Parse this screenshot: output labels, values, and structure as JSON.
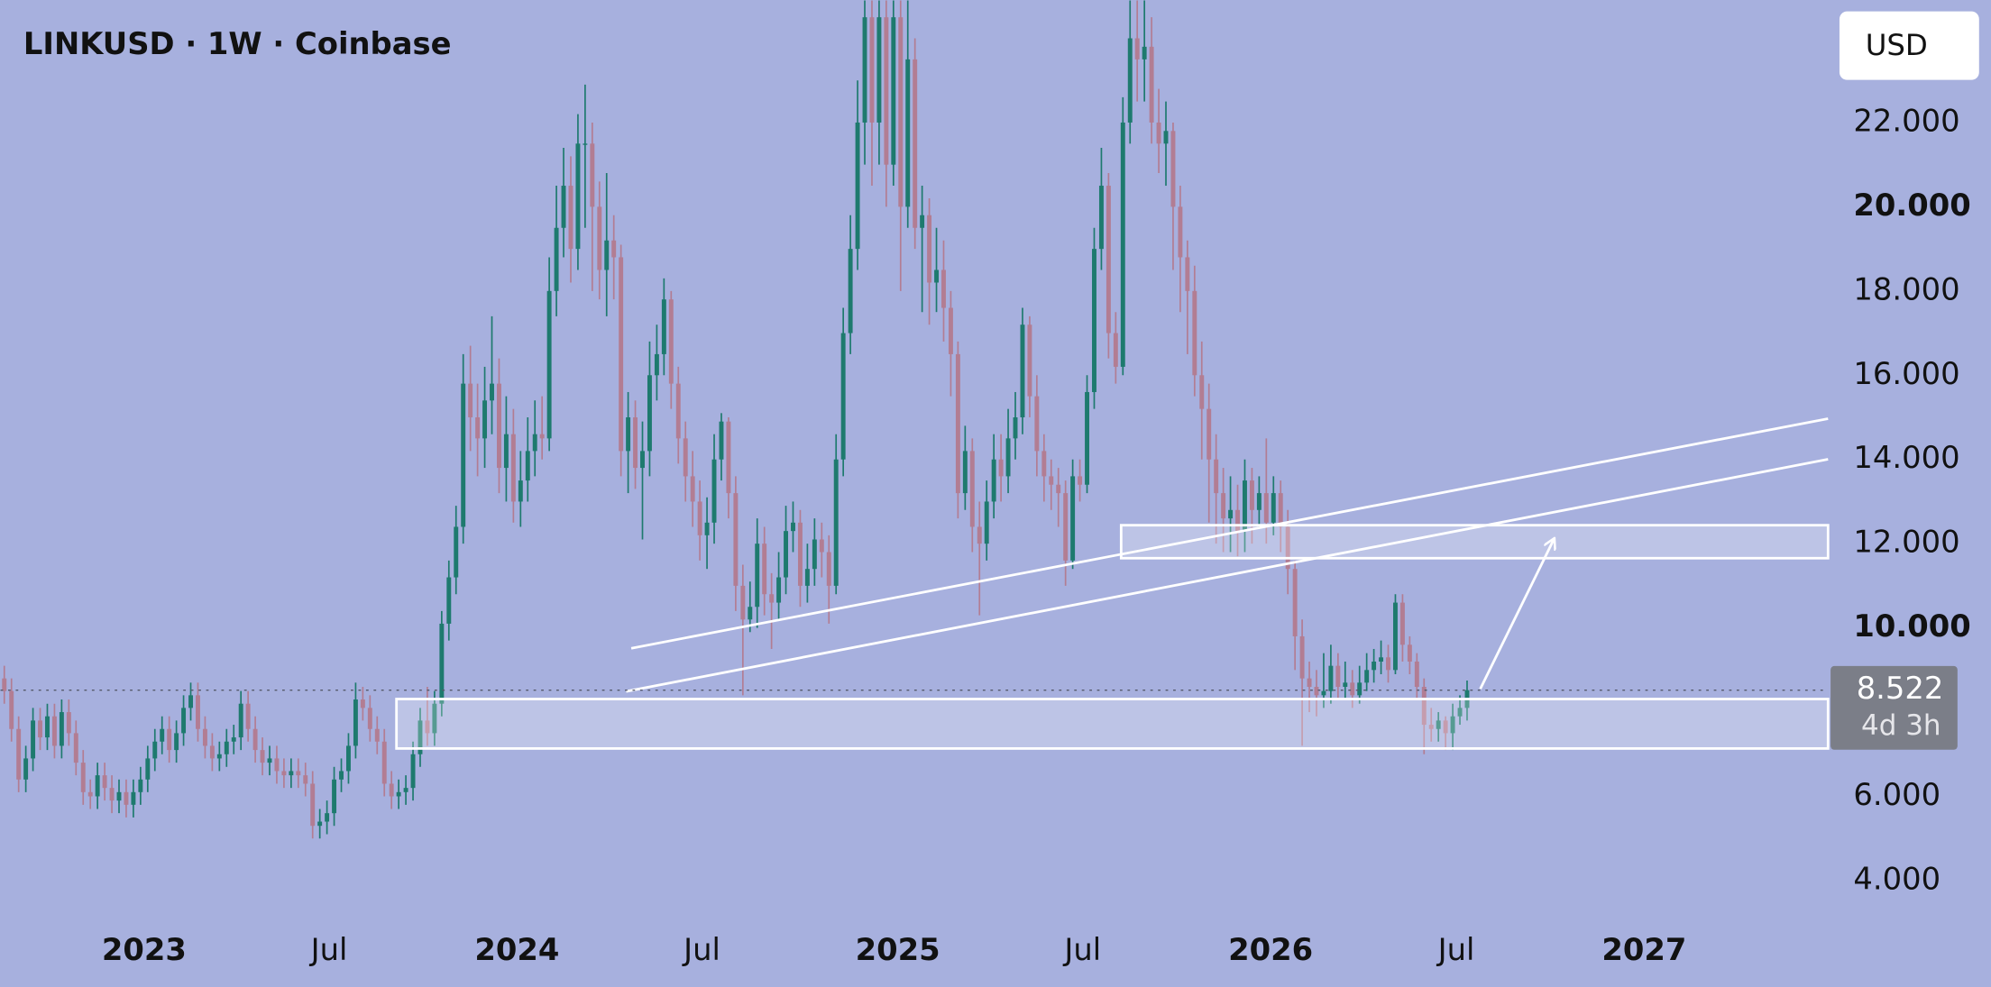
{
  "chart_data": {
    "type": "candlestick",
    "title": "LINKUSD · 1W · Coinbase",
    "currency": "USD",
    "countdown": "4d 3h",
    "up_color": "#1e7a6e",
    "down_color": "#b27d93",
    "ylim": [
      3.22,
      24.91
    ],
    "yticks": [
      {
        "value": 4,
        "label": "4.000"
      },
      {
        "value": 6,
        "label": "6.000"
      },
      {
        "value": 10,
        "label": "10.000"
      },
      {
        "value": 12,
        "label": "12.000"
      },
      {
        "value": 14,
        "label": "14.000"
      },
      {
        "value": 16,
        "label": "16.000"
      },
      {
        "value": 18,
        "label": "18.000"
      },
      {
        "value": 20,
        "label": "20.000"
      },
      {
        "value": 22,
        "label": "22.000"
      }
    ],
    "xlim": [
      -0.53,
      254.34
    ],
    "xticks": [
      {
        "value": 19.5,
        "label": "2023"
      },
      {
        "value": 45.3,
        "label": "Jul"
      },
      {
        "value": 71.5,
        "label": "2024"
      },
      {
        "value": 97.3,
        "label": "Jul"
      },
      {
        "value": 124.6,
        "label": "2025"
      },
      {
        "value": 150.4,
        "label": "Jul"
      },
      {
        "value": 176.6,
        "label": "2026"
      },
      {
        "value": 202.5,
        "label": "Jul"
      },
      {
        "value": 228.7,
        "label": "2027"
      }
    ],
    "open": [
      8.8,
      8.5,
      7.6,
      6.4,
      6.9,
      7.8,
      7.4,
      7.9,
      7.2,
      8.0,
      7.5,
      6.8,
      6.1,
      6.0,
      6.5,
      6.2,
      5.9,
      6.1,
      5.8,
      6.1,
      6.4,
      6.9,
      7.3,
      7.6,
      7.1,
      7.5,
      8.1,
      8.4,
      7.6,
      7.2,
      6.9,
      7.0,
      7.3,
      7.4,
      8.2,
      7.6,
      7.1,
      6.8,
      6.9,
      6.6,
      6.5,
      6.6,
      6.5,
      6.3,
      5.3,
      5.4,
      5.6,
      6.4,
      6.6,
      7.2,
      8.3,
      8.1,
      7.6,
      7.3,
      6.3,
      6.0,
      6.1,
      6.2,
      7.0,
      7.8,
      7.5,
      8.2,
      10.1,
      11.2,
      12.4,
      15.8,
      15.0,
      14.5,
      15.4,
      15.8,
      13.8,
      14.6,
      13.0,
      13.5,
      14.2,
      14.6,
      14.5,
      18.0,
      19.5,
      20.5,
      19.0,
      21.5,
      21.5,
      20.0,
      18.5,
      19.2,
      18.8,
      14.2,
      15.0,
      13.8,
      14.2,
      16.0,
      16.5,
      17.8,
      15.8,
      14.5,
      13.6,
      13.0,
      12.2,
      12.5,
      14.0,
      14.9,
      13.2,
      11.0,
      10.2,
      10.5,
      12.0,
      10.8,
      10.6,
      11.2,
      12.3,
      12.5,
      11.0,
      11.4,
      12.1,
      11.8,
      11.0,
      14.0,
      17.0,
      19.0,
      22.0,
      24.5,
      22.0,
      24.5,
      21.0,
      24.5,
      20.0,
      23.5,
      19.5,
      19.8,
      18.2,
      18.5,
      17.6,
      16.5,
      13.2,
      14.2,
      12.4,
      12.0,
      13.0,
      14.0,
      13.6,
      14.5,
      15.0,
      17.2,
      15.5,
      14.2,
      13.6,
      13.4,
      13.2,
      11.6,
      13.6,
      13.4,
      15.6,
      19.0,
      20.5,
      17.0,
      16.2,
      22.0,
      24.0,
      23.5,
      23.8,
      22.0,
      21.5,
      21.8,
      20.0,
      18.8,
      18.0,
      16.0,
      15.2,
      14.0,
      13.2,
      12.6,
      12.8,
      12.3,
      13.5,
      12.8,
      13.2,
      12.5,
      13.2,
      12.4,
      11.4,
      9.8,
      8.8,
      8.6,
      8.4,
      8.5,
      9.1,
      8.6,
      8.7,
      8.4,
      8.7,
      9.0,
      9.2,
      9.3,
      9.0,
      10.6,
      9.6,
      9.2,
      8.6,
      7.7,
      7.6,
      7.8,
      7.5,
      7.9,
      8.1
    ],
    "high": [
      9.1,
      8.8,
      7.9,
      7.2,
      8.1,
      8.1,
      8.2,
      8.2,
      8.3,
      8.3,
      7.8,
      7.1,
      6.4,
      6.8,
      6.8,
      6.5,
      6.4,
      6.4,
      6.4,
      6.7,
      7.2,
      7.6,
      7.9,
      7.9,
      7.8,
      8.4,
      8.7,
      8.7,
      7.9,
      7.5,
      7.3,
      7.6,
      7.7,
      8.5,
      8.5,
      7.9,
      7.4,
      7.2,
      7.2,
      6.9,
      6.9,
      6.9,
      6.8,
      6.6,
      5.7,
      5.9,
      6.7,
      6.9,
      7.5,
      8.7,
      8.6,
      8.4,
      7.9,
      7.6,
      6.6,
      6.4,
      6.5,
      7.3,
      8.1,
      8.6,
      8.5,
      10.4,
      11.6,
      12.9,
      16.5,
      16.7,
      15.8,
      16.2,
      17.4,
      16.4,
      15.5,
      15.2,
      14.2,
      15.0,
      15.4,
      15.5,
      18.8,
      20.5,
      21.4,
      21.2,
      22.2,
      22.9,
      22.0,
      20.6,
      20.8,
      19.8,
      19.1,
      15.6,
      15.4,
      14.9,
      16.8,
      17.2,
      18.3,
      18.0,
      16.2,
      14.9,
      14.2,
      13.5,
      13.1,
      14.6,
      15.1,
      15.0,
      13.6,
      11.5,
      11.1,
      12.6,
      12.4,
      11.3,
      11.8,
      12.9,
      13.0,
      12.8,
      12.0,
      12.6,
      12.5,
      12.2,
      14.6,
      17.6,
      19.8,
      23.0,
      24.9,
      24.9,
      24.9,
      24.9,
      24.9,
      24.9,
      24.9,
      24.0,
      20.5,
      20.2,
      19.5,
      19.2,
      18.0,
      16.8,
      14.8,
      14.5,
      13.0,
      13.5,
      14.6,
      14.6,
      15.2,
      15.6,
      17.6,
      17.4,
      16.0,
      14.6,
      14.0,
      13.8,
      13.5,
      14.0,
      14.0,
      16.0,
      19.5,
      21.4,
      20.8,
      17.5,
      22.6,
      24.9,
      24.9,
      24.9,
      24.5,
      22.8,
      22.5,
      22.0,
      20.5,
      19.2,
      18.6,
      16.8,
      15.8,
      14.6,
      13.8,
      13.6,
      13.4,
      14.0,
      13.8,
      13.6,
      14.5,
      13.6,
      13.5,
      12.8,
      11.6,
      10.2,
      9.2,
      9.0,
      9.4,
      9.6,
      9.4,
      9.2,
      9.0,
      9.1,
      9.4,
      9.5,
      9.7,
      9.6,
      10.8,
      10.8,
      9.8,
      9.4,
      8.8,
      8.1,
      8.0,
      7.9,
      8.2,
      8.4,
      8.75
    ],
    "low": [
      8.2,
      7.3,
      6.1,
      6.1,
      6.6,
      7.1,
      7.1,
      6.9,
      6.9,
      7.2,
      6.5,
      5.8,
      5.7,
      5.7,
      5.9,
      5.6,
      5.6,
      5.5,
      5.5,
      5.8,
      6.1,
      6.6,
      7.0,
      6.8,
      6.8,
      7.2,
      7.8,
      7.3,
      6.9,
      6.6,
      6.6,
      6.7,
      7.0,
      7.1,
      7.3,
      6.8,
      6.5,
      6.5,
      6.3,
      6.2,
      6.2,
      6.2,
      6.0,
      5.0,
      5.0,
      5.1,
      5.3,
      6.1,
      6.3,
      6.9,
      7.8,
      7.3,
      7.0,
      6.0,
      5.7,
      5.7,
      5.8,
      5.9,
      6.7,
      7.2,
      7.2,
      7.9,
      9.7,
      10.8,
      12.0,
      14.2,
      13.6,
      13.8,
      14.6,
      13.2,
      13.0,
      12.5,
      12.4,
      13.0,
      13.6,
      14.0,
      14.2,
      17.4,
      18.8,
      18.2,
      18.5,
      19.5,
      18.0,
      17.8,
      17.4,
      17.8,
      13.6,
      13.2,
      13.3,
      12.1,
      13.6,
      15.4,
      16.0,
      15.2,
      13.9,
      13.0,
      12.4,
      11.6,
      11.4,
      12.0,
      13.5,
      12.6,
      10.4,
      8.4,
      9.9,
      10.0,
      10.3,
      9.5,
      10.2,
      10.8,
      11.8,
      10.5,
      10.6,
      11.0,
      11.2,
      10.1,
      10.8,
      13.6,
      16.5,
      18.5,
      21.0,
      20.5,
      21.0,
      20.0,
      20.5,
      18.0,
      19.5,
      19.0,
      17.5,
      17.2,
      17.5,
      16.8,
      15.5,
      12.6,
      12.8,
      11.8,
      10.3,
      11.6,
      12.6,
      13.0,
      13.2,
      14.0,
      14.6,
      15.0,
      13.6,
      13.0,
      12.8,
      12.4,
      11.0,
      11.4,
      13.0,
      13.2,
      15.2,
      18.5,
      16.4,
      15.8,
      16.0,
      21.5,
      22.5,
      22.5,
      21.5,
      20.8,
      20.5,
      18.5,
      17.5,
      16.5,
      15.5,
      14.0,
      12.5,
      12.0,
      11.8,
      11.8,
      11.7,
      11.8,
      12.0,
      12.4,
      12.0,
      12.2,
      11.8,
      10.8,
      9.0,
      7.2,
      8.0,
      7.9,
      8.1,
      8.2,
      8.3,
      8.3,
      8.1,
      8.2,
      8.5,
      8.7,
      8.9,
      8.7,
      8.9,
      9.2,
      8.9,
      8.3,
      7.0,
      7.3,
      7.3,
      7.1,
      7.1,
      7.7,
      7.8
    ],
    "close": [
      8.5,
      7.6,
      6.4,
      6.9,
      7.8,
      7.4,
      7.9,
      7.2,
      8.0,
      7.5,
      6.8,
      6.1,
      6.0,
      6.5,
      6.2,
      5.9,
      6.1,
      5.8,
      6.1,
      6.4,
      6.9,
      7.3,
      7.6,
      7.1,
      7.5,
      8.1,
      8.4,
      7.6,
      7.2,
      6.9,
      7.0,
      7.3,
      7.4,
      8.2,
      7.6,
      7.1,
      6.8,
      6.9,
      6.6,
      6.5,
      6.6,
      6.5,
      6.3,
      5.3,
      5.4,
      5.6,
      6.4,
      6.6,
      7.2,
      8.3,
      8.1,
      7.6,
      7.3,
      6.3,
      6.0,
      6.1,
      6.2,
      7.0,
      7.8,
      7.5,
      8.2,
      10.1,
      11.2,
      12.4,
      15.8,
      15.0,
      14.5,
      15.4,
      15.8,
      13.8,
      14.6,
      13.0,
      13.5,
      14.2,
      14.6,
      14.5,
      18.0,
      19.5,
      20.5,
      19.0,
      21.5,
      21.5,
      20.0,
      18.5,
      19.2,
      18.8,
      14.2,
      15.0,
      13.8,
      14.2,
      16.0,
      16.5,
      17.8,
      15.8,
      14.5,
      13.6,
      13.0,
      12.2,
      12.5,
      14.0,
      14.9,
      13.2,
      11.0,
      10.2,
      10.5,
      12.0,
      10.8,
      10.6,
      11.2,
      12.3,
      12.5,
      11.0,
      11.4,
      12.1,
      11.8,
      11.0,
      14.0,
      17.0,
      19.0,
      22.0,
      24.5,
      22.0,
      24.5,
      21.0,
      24.5,
      20.0,
      23.5,
      19.5,
      19.8,
      18.2,
      18.5,
      17.6,
      16.5,
      13.2,
      14.2,
      12.4,
      12.0,
      13.0,
      14.0,
      13.6,
      14.5,
      15.0,
      17.2,
      15.5,
      14.2,
      13.6,
      13.4,
      13.2,
      11.6,
      13.6,
      13.4,
      15.6,
      19.0,
      20.5,
      17.0,
      16.2,
      22.0,
      24.0,
      23.5,
      23.8,
      22.0,
      21.5,
      21.8,
      20.0,
      18.8,
      18.0,
      16.0,
      15.2,
      14.0,
      13.2,
      12.6,
      12.8,
      12.3,
      13.5,
      12.8,
      13.2,
      12.5,
      13.2,
      12.4,
      11.4,
      9.8,
      8.8,
      8.6,
      8.4,
      8.5,
      9.1,
      8.6,
      8.7,
      8.4,
      8.7,
      9.0,
      9.2,
      9.3,
      9.0,
      10.6,
      9.6,
      9.2,
      8.6,
      7.7,
      7.6,
      7.8,
      7.5,
      7.9,
      8.1,
      8.522
    ]
  }
}
